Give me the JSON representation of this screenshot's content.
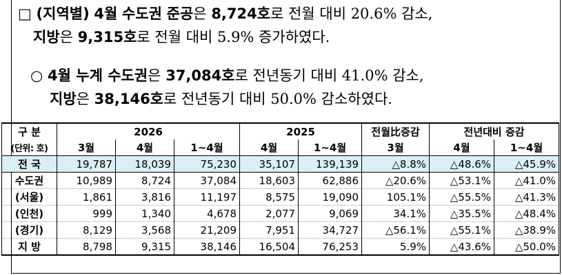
{
  "para1": {
    "box": "□",
    "label": "(지역별)",
    "month": "4월",
    "region": "수도권",
    "kind": "준공",
    "particle": "은",
    "value": "8,724호",
    "trail": "로 전월 대비 20.6% 감소,"
  },
  "para2": {
    "region": "지방",
    "particle": "은",
    "value": "9,315호",
    "trail": "로 전월 대비 5.9% 증가하였다."
  },
  "para3": {
    "bullet": "○",
    "label": "4월 누계 수도권",
    "particle": "은",
    "value": "37,084호",
    "trail": "로 전년동기 대비 41.0% 감소,"
  },
  "para4": {
    "region": "지방",
    "particle": "은",
    "value": "38,146호",
    "trail": "로 전년동기 대비 50.0% 감소하였다."
  },
  "table": {
    "header1": [
      "구 분",
      "2026",
      "2025",
      "전월比증감",
      "전년대비 증감"
    ],
    "header2": [
      "(단위: 호)",
      "3월",
      "4월",
      "1~4월",
      "4월",
      "1~4월",
      "3월",
      "4월",
      "1~4월"
    ],
    "rows": [
      [
        "전 국",
        "19,787",
        "18,039",
        "75,230",
        "35,107",
        "139,139",
        "△8.8%",
        "△48.6%",
        "△45.9%"
      ],
      [
        "수도권",
        "10,989",
        "8,724",
        "37,084",
        "18,603",
        "62,886",
        "△20.6%",
        "△53.1%",
        "△41.0%"
      ],
      [
        "(서울)",
        "1,861",
        "3,816",
        "11,197",
        "8,575",
        "19,090",
        "105.1%",
        "△55.5%",
        "△41.3%"
      ],
      [
        "(인천)",
        "999",
        "1,340",
        "4,678",
        "2,077",
        "9,069",
        "34.1%",
        "△35.5%",
        "△48.4%"
      ],
      [
        "(경기)",
        "8,129",
        "3,568",
        "21,209",
        "7,951",
        "34,727",
        "△56.1%",
        "△55.1%",
        "△38.9%"
      ],
      [
        "지  방",
        "8,798",
        "9,315",
        "38,146",
        "16,504",
        "76,253",
        "5.9%",
        "△43.6%",
        "△50.0%"
      ]
    ]
  },
  "colors": {
    "national_row_bg": "#dbeef4"
  }
}
